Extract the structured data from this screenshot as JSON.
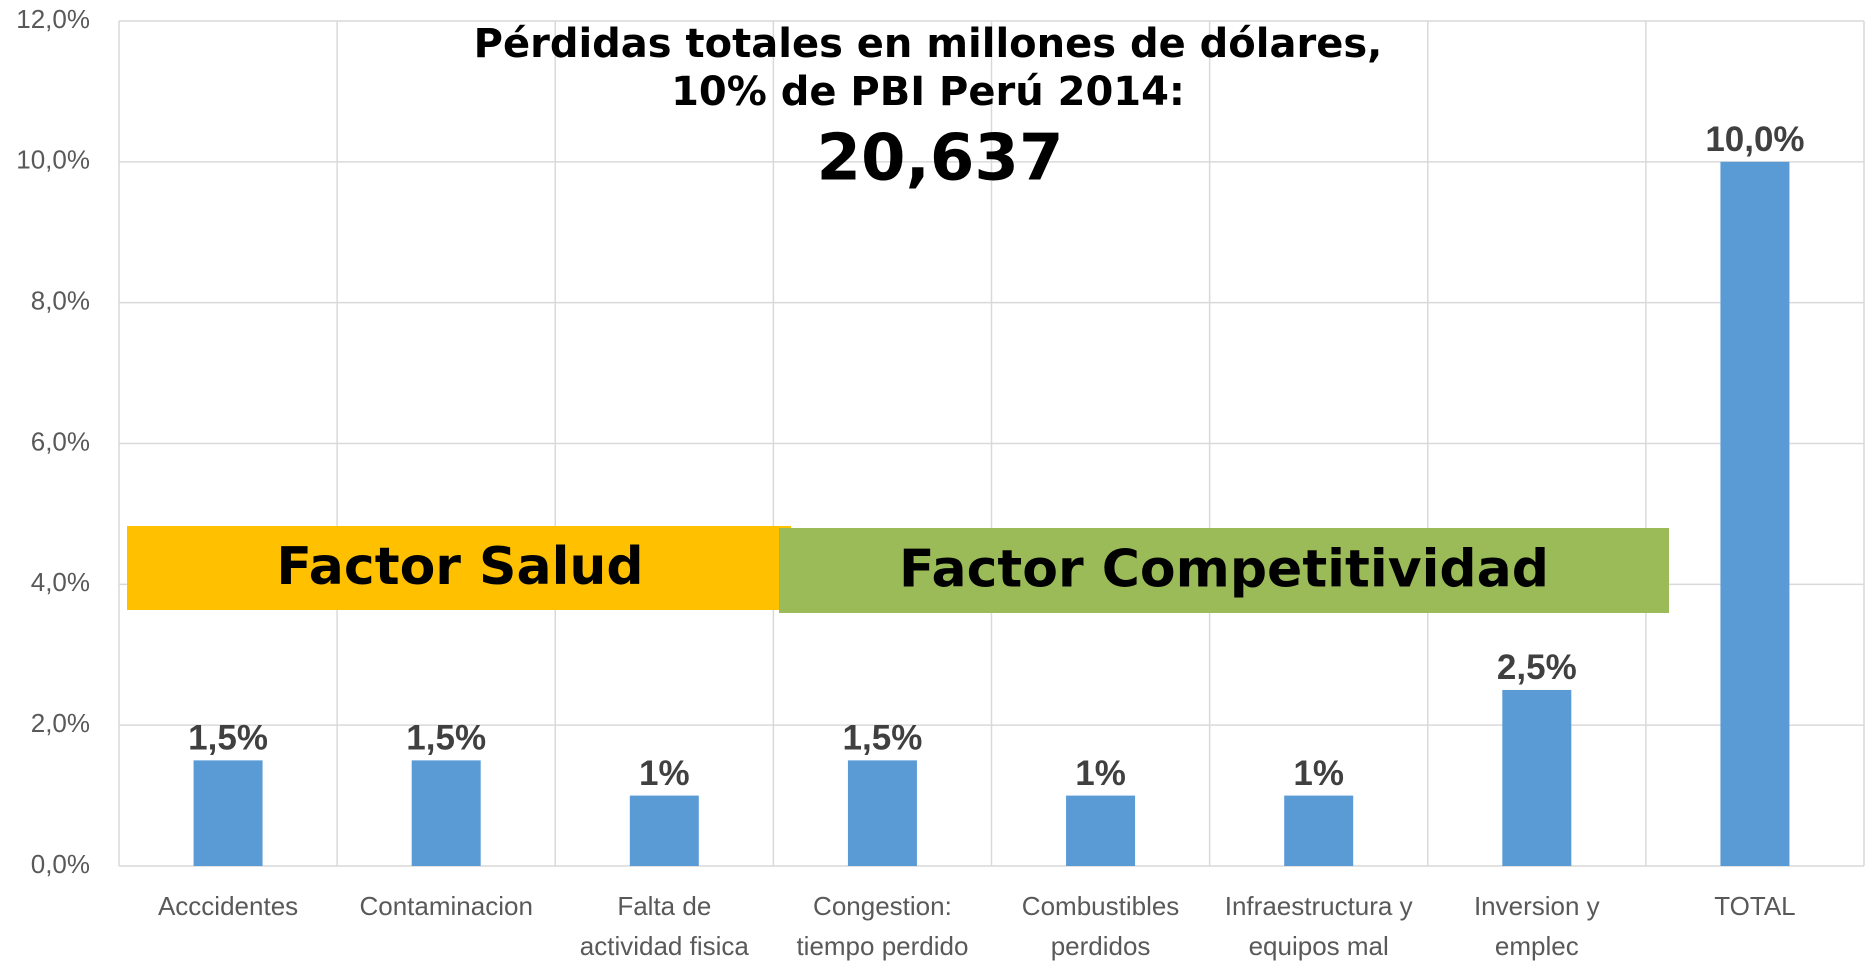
{
  "chart_data": {
    "type": "bar",
    "title": [
      "Pérdidas totales en millones de dólares,",
      "10% de PBI Perú 2014:",
      "20,637"
    ],
    "categories": [
      [
        "Acccidentes"
      ],
      [
        "Contaminacion"
      ],
      [
        "Falta de",
        "actividad fisica"
      ],
      [
        "Congestion:",
        "tiempo perdido"
      ],
      [
        "Combustibles",
        "perdidos"
      ],
      [
        "Infraestructura y",
        "equipos mal"
      ],
      [
        "Inversion y",
        "emplec"
      ],
      [
        "TOTAL"
      ]
    ],
    "values": [
      1.5,
      1.5,
      1,
      1.5,
      1,
      1,
      2.5,
      10
    ],
    "value_labels": [
      "1,5%",
      "1,5%",
      "1%",
      "1,5%",
      "1%",
      "1%",
      "2,5%",
      "10,0%"
    ],
    "color": "#5b9bd5",
    "ylim": [
      0,
      12
    ],
    "yticks": [
      {
        "value": 0,
        "label": "0,0%"
      },
      {
        "value": 2,
        "label": "2,0%"
      },
      {
        "value": 4,
        "label": "4,0%"
      },
      {
        "value": 6,
        "label": "6,0%"
      },
      {
        "value": 8,
        "label": "8,0%"
      },
      {
        "value": 10,
        "label": "10,0%"
      },
      {
        "value": 12,
        "label": "12,0%"
      }
    ],
    "grid": true,
    "annotations": [
      {
        "text": "Factor Salud",
        "color": "#ffc000"
      },
      {
        "text": "Factor Competitividad",
        "color": "#9bbb59"
      }
    ]
  }
}
